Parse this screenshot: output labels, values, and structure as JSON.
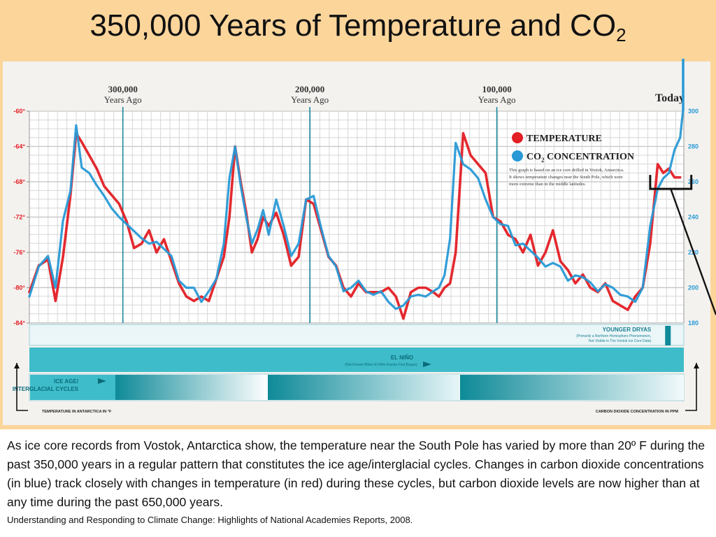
{
  "slide": {
    "title_main": "350,000 Years of Temperature and CO",
    "title_sub": "2",
    "caption": "As ice core records from Vostok, Antarctica show, the temperature near the South Pole has varied by more than 20º F during the past 350,000 years in a regular pattern that constitutes the ice age/interglacial cycles. Changes in carbon dioxide concentrations (in blue) track closely with changes in temperature (in red) during these cycles, but carbon dioxide levels are now higher than at any time during the past 650,000 years.",
    "source": "Understanding and Responding to Climate Change: Highlights of National Academies Reports, 2008."
  },
  "chart_data": {
    "type": "line",
    "time_markers": [
      {
        "label": "300,000",
        "sublabel": "Years Ago",
        "years_ago": 300000
      },
      {
        "label": "200,000",
        "sublabel": "Years Ago",
        "years_ago": 200000
      },
      {
        "label": "100,000",
        "sublabel": "Years Ago",
        "years_ago": 100000
      }
    ],
    "today_label": "Today",
    "x_range_years_ago": [
      350000,
      0
    ],
    "left_axis": {
      "ticks": [
        -60,
        -64,
        -68,
        -72,
        -76,
        -80,
        -84
      ],
      "tick_suffix": "°",
      "range": [
        -84,
        -60
      ]
    },
    "right_axis": {
      "ticks": [
        300,
        280,
        260,
        240,
        220,
        200,
        180
      ],
      "range": [
        180,
        300
      ]
    },
    "left_axis_label": "TEMPERATURE IN ANTARCTICA IN °F",
    "right_axis_label": "CARBON DIOXIDE CONCENTRATION IN PPM",
    "legend": [
      {
        "label": "TEMPERATURE",
        "color": "#e31e24"
      },
      {
        "label_main": "CO",
        "label_sub": "2",
        "label_rest": " CONCENTRATION",
        "color": "#2899d6"
      }
    ],
    "note_lines": [
      "This graph is based on an ice core drilled in Vostok, Antarctica.",
      "It shows temperature changes near the South Pole, which were",
      "more extreme than in the middle latitudes."
    ],
    "series": [
      {
        "name": "TEMPERATURE",
        "axis": "left",
        "color": "#e31e24",
        "x_years_ago": [
          350000,
          345000,
          340000,
          336000,
          332000,
          328000,
          325000,
          322000,
          318000,
          314000,
          310000,
          306000,
          302000,
          298000,
          294000,
          290000,
          286000,
          282000,
          278000,
          274000,
          270000,
          266000,
          262000,
          258000,
          254000,
          250000,
          246000,
          243000,
          240000,
          237000,
          234000,
          231000,
          228000,
          225000,
          222000,
          218000,
          214000,
          210000,
          206000,
          202000,
          198000,
          194000,
          190000,
          186000,
          182000,
          178000,
          174000,
          170000,
          166000,
          162000,
          158000,
          154000,
          150000,
          146000,
          142000,
          138000,
          134000,
          131000,
          128000,
          125000,
          122000,
          118000,
          114000,
          110000,
          106000,
          102000,
          98000,
          94000,
          90000,
          86000,
          82000,
          78000,
          74000,
          70000,
          66000,
          62000,
          58000,
          54000,
          50000,
          46000,
          42000,
          38000,
          34000,
          30000,
          26000,
          22000,
          18000,
          14000,
          11000,
          8000,
          5000,
          2000
        ],
        "values": [
          -80.5,
          -77.5,
          -76.8,
          -81.5,
          -76.5,
          -69.5,
          -62.5,
          -63.5,
          -65,
          -66.5,
          -68.5,
          -69.5,
          -70.5,
          -72.5,
          -75.5,
          -75,
          -73.5,
          -76,
          -74.5,
          -77,
          -79.5,
          -81,
          -81.5,
          -81,
          -81.5,
          -79,
          -76.5,
          -72,
          -64,
          -68,
          -71.5,
          -76,
          -74.5,
          -72,
          -73,
          -71.5,
          -74,
          -77.5,
          -76.5,
          -70,
          -70.5,
          -73.5,
          -76.5,
          -77.5,
          -80,
          -81,
          -79.5,
          -80.5,
          -80.5,
          -80.5,
          -80,
          -81,
          -83.5,
          -80.5,
          -80,
          -80,
          -80.5,
          -81,
          -80,
          -79.5,
          -76,
          -62.5,
          -65,
          -66,
          -67,
          -72,
          -72.5,
          -74,
          -74.5,
          -76,
          -74,
          -77.5,
          -76,
          -73.5,
          -77,
          -78,
          -79.5,
          -78.5,
          -80,
          -80.5,
          -79.5,
          -81.5,
          -82,
          -82.5,
          -81,
          -80,
          -75,
          -66,
          -67,
          -66.5,
          -67.5,
          -67.5
        ]
      },
      {
        "name": "CO2 CONCENTRATION",
        "axis": "right",
        "color": "#2899d6",
        "x_years_ago": [
          350000,
          345000,
          340000,
          336000,
          332000,
          328000,
          325000,
          322000,
          318000,
          314000,
          310000,
          306000,
          302000,
          298000,
          294000,
          290000,
          286000,
          282000,
          278000,
          274000,
          270000,
          266000,
          262000,
          258000,
          254000,
          250000,
          246000,
          243000,
          240000,
          237000,
          234000,
          231000,
          228000,
          225000,
          222000,
          218000,
          214000,
          210000,
          206000,
          202000,
          198000,
          194000,
          190000,
          186000,
          182000,
          178000,
          174000,
          170000,
          166000,
          162000,
          158000,
          154000,
          150000,
          146000,
          142000,
          138000,
          134000,
          131000,
          128000,
          125000,
          122000,
          118000,
          114000,
          110000,
          106000,
          102000,
          98000,
          94000,
          90000,
          86000,
          82000,
          78000,
          74000,
          70000,
          66000,
          62000,
          58000,
          54000,
          50000,
          46000,
          42000,
          38000,
          34000,
          30000,
          26000,
          22000,
          18000,
          14000,
          11000,
          8000,
          5000,
          2000,
          500
        ],
        "values": [
          195,
          212,
          218,
          200,
          238,
          255,
          292,
          268,
          265,
          258,
          252,
          245,
          240,
          236,
          232,
          228,
          225,
          226,
          222,
          218,
          204,
          200,
          200,
          192,
          198,
          205,
          225,
          262,
          280,
          258,
          240,
          225,
          233,
          244,
          230,
          250,
          235,
          218,
          225,
          250,
          252,
          234,
          218,
          212,
          198,
          200,
          204,
          198,
          196,
          198,
          192,
          188,
          190,
          195,
          196,
          195,
          198,
          200,
          207,
          228,
          282,
          270,
          267,
          262,
          250,
          240,
          236,
          235,
          224,
          225,
          221,
          217,
          212,
          214,
          212,
          204,
          207,
          206,
          203,
          198,
          202,
          200,
          196,
          195,
          192,
          200,
          235,
          256,
          262,
          265,
          278,
          285,
          300
        ]
      }
    ],
    "bands": [
      {
        "name": "YOUNGER DRYAS",
        "note1": "(Primarily a Northern Hemisphere Phenomenon,",
        "note2": "Not Visible in The Vostok Ice Core Data)"
      },
      {
        "name": "EL NIÑO",
        "note1": "(Not Known When El Niño Events First Began)"
      },
      {
        "name": "ICE AGE/",
        "name2": "INTERGLACIAL CYCLES"
      }
    ]
  }
}
